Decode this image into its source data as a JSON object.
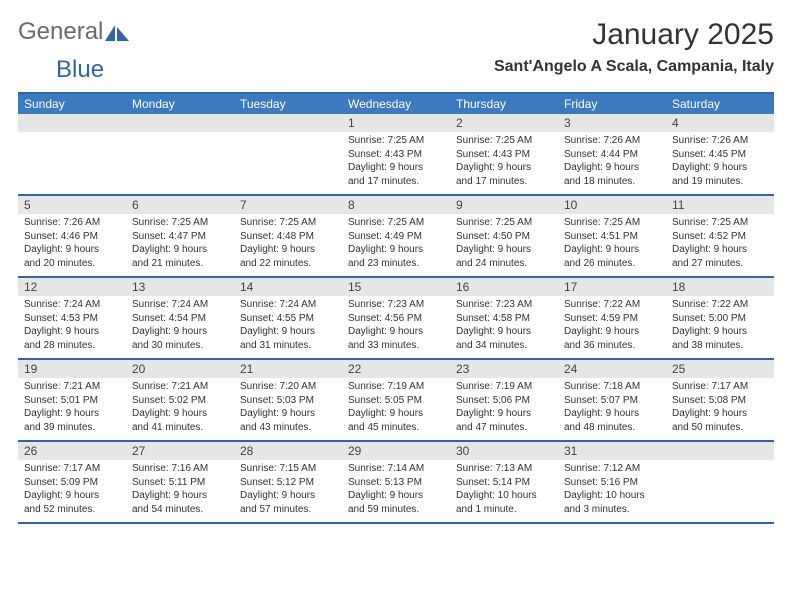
{
  "brand": {
    "word1": "General",
    "word2": "Blue"
  },
  "title": "January 2025",
  "location": "Sant'Angelo A Scala, Campania, Italy",
  "colors": {
    "header_bg": "#3b7abf",
    "rule": "#2f67a6",
    "daynum_bg": "#e6e6e6",
    "text": "#333333",
    "page_bg": "#ffffff"
  },
  "day_names": [
    "Sunday",
    "Monday",
    "Tuesday",
    "Wednesday",
    "Thursday",
    "Friday",
    "Saturday"
  ],
  "weeks": [
    [
      {
        "n": "",
        "sr": "",
        "ss": "",
        "dl1": "",
        "dl2": ""
      },
      {
        "n": "",
        "sr": "",
        "ss": "",
        "dl1": "",
        "dl2": ""
      },
      {
        "n": "",
        "sr": "",
        "ss": "",
        "dl1": "",
        "dl2": ""
      },
      {
        "n": "1",
        "sr": "Sunrise: 7:25 AM",
        "ss": "Sunset: 4:43 PM",
        "dl1": "Daylight: 9 hours",
        "dl2": "and 17 minutes."
      },
      {
        "n": "2",
        "sr": "Sunrise: 7:25 AM",
        "ss": "Sunset: 4:43 PM",
        "dl1": "Daylight: 9 hours",
        "dl2": "and 17 minutes."
      },
      {
        "n": "3",
        "sr": "Sunrise: 7:26 AM",
        "ss": "Sunset: 4:44 PM",
        "dl1": "Daylight: 9 hours",
        "dl2": "and 18 minutes."
      },
      {
        "n": "4",
        "sr": "Sunrise: 7:26 AM",
        "ss": "Sunset: 4:45 PM",
        "dl1": "Daylight: 9 hours",
        "dl2": "and 19 minutes."
      }
    ],
    [
      {
        "n": "5",
        "sr": "Sunrise: 7:26 AM",
        "ss": "Sunset: 4:46 PM",
        "dl1": "Daylight: 9 hours",
        "dl2": "and 20 minutes."
      },
      {
        "n": "6",
        "sr": "Sunrise: 7:25 AM",
        "ss": "Sunset: 4:47 PM",
        "dl1": "Daylight: 9 hours",
        "dl2": "and 21 minutes."
      },
      {
        "n": "7",
        "sr": "Sunrise: 7:25 AM",
        "ss": "Sunset: 4:48 PM",
        "dl1": "Daylight: 9 hours",
        "dl2": "and 22 minutes."
      },
      {
        "n": "8",
        "sr": "Sunrise: 7:25 AM",
        "ss": "Sunset: 4:49 PM",
        "dl1": "Daylight: 9 hours",
        "dl2": "and 23 minutes."
      },
      {
        "n": "9",
        "sr": "Sunrise: 7:25 AM",
        "ss": "Sunset: 4:50 PM",
        "dl1": "Daylight: 9 hours",
        "dl2": "and 24 minutes."
      },
      {
        "n": "10",
        "sr": "Sunrise: 7:25 AM",
        "ss": "Sunset: 4:51 PM",
        "dl1": "Daylight: 9 hours",
        "dl2": "and 26 minutes."
      },
      {
        "n": "11",
        "sr": "Sunrise: 7:25 AM",
        "ss": "Sunset: 4:52 PM",
        "dl1": "Daylight: 9 hours",
        "dl2": "and 27 minutes."
      }
    ],
    [
      {
        "n": "12",
        "sr": "Sunrise: 7:24 AM",
        "ss": "Sunset: 4:53 PM",
        "dl1": "Daylight: 9 hours",
        "dl2": "and 28 minutes."
      },
      {
        "n": "13",
        "sr": "Sunrise: 7:24 AM",
        "ss": "Sunset: 4:54 PM",
        "dl1": "Daylight: 9 hours",
        "dl2": "and 30 minutes."
      },
      {
        "n": "14",
        "sr": "Sunrise: 7:24 AM",
        "ss": "Sunset: 4:55 PM",
        "dl1": "Daylight: 9 hours",
        "dl2": "and 31 minutes."
      },
      {
        "n": "15",
        "sr": "Sunrise: 7:23 AM",
        "ss": "Sunset: 4:56 PM",
        "dl1": "Daylight: 9 hours",
        "dl2": "and 33 minutes."
      },
      {
        "n": "16",
        "sr": "Sunrise: 7:23 AM",
        "ss": "Sunset: 4:58 PM",
        "dl1": "Daylight: 9 hours",
        "dl2": "and 34 minutes."
      },
      {
        "n": "17",
        "sr": "Sunrise: 7:22 AM",
        "ss": "Sunset: 4:59 PM",
        "dl1": "Daylight: 9 hours",
        "dl2": "and 36 minutes."
      },
      {
        "n": "18",
        "sr": "Sunrise: 7:22 AM",
        "ss": "Sunset: 5:00 PM",
        "dl1": "Daylight: 9 hours",
        "dl2": "and 38 minutes."
      }
    ],
    [
      {
        "n": "19",
        "sr": "Sunrise: 7:21 AM",
        "ss": "Sunset: 5:01 PM",
        "dl1": "Daylight: 9 hours",
        "dl2": "and 39 minutes."
      },
      {
        "n": "20",
        "sr": "Sunrise: 7:21 AM",
        "ss": "Sunset: 5:02 PM",
        "dl1": "Daylight: 9 hours",
        "dl2": "and 41 minutes."
      },
      {
        "n": "21",
        "sr": "Sunrise: 7:20 AM",
        "ss": "Sunset: 5:03 PM",
        "dl1": "Daylight: 9 hours",
        "dl2": "and 43 minutes."
      },
      {
        "n": "22",
        "sr": "Sunrise: 7:19 AM",
        "ss": "Sunset: 5:05 PM",
        "dl1": "Daylight: 9 hours",
        "dl2": "and 45 minutes."
      },
      {
        "n": "23",
        "sr": "Sunrise: 7:19 AM",
        "ss": "Sunset: 5:06 PM",
        "dl1": "Daylight: 9 hours",
        "dl2": "and 47 minutes."
      },
      {
        "n": "24",
        "sr": "Sunrise: 7:18 AM",
        "ss": "Sunset: 5:07 PM",
        "dl1": "Daylight: 9 hours",
        "dl2": "and 48 minutes."
      },
      {
        "n": "25",
        "sr": "Sunrise: 7:17 AM",
        "ss": "Sunset: 5:08 PM",
        "dl1": "Daylight: 9 hours",
        "dl2": "and 50 minutes."
      }
    ],
    [
      {
        "n": "26",
        "sr": "Sunrise: 7:17 AM",
        "ss": "Sunset: 5:09 PM",
        "dl1": "Daylight: 9 hours",
        "dl2": "and 52 minutes."
      },
      {
        "n": "27",
        "sr": "Sunrise: 7:16 AM",
        "ss": "Sunset: 5:11 PM",
        "dl1": "Daylight: 9 hours",
        "dl2": "and 54 minutes."
      },
      {
        "n": "28",
        "sr": "Sunrise: 7:15 AM",
        "ss": "Sunset: 5:12 PM",
        "dl1": "Daylight: 9 hours",
        "dl2": "and 57 minutes."
      },
      {
        "n": "29",
        "sr": "Sunrise: 7:14 AM",
        "ss": "Sunset: 5:13 PM",
        "dl1": "Daylight: 9 hours",
        "dl2": "and 59 minutes."
      },
      {
        "n": "30",
        "sr": "Sunrise: 7:13 AM",
        "ss": "Sunset: 5:14 PM",
        "dl1": "Daylight: 10 hours",
        "dl2": "and 1 minute."
      },
      {
        "n": "31",
        "sr": "Sunrise: 7:12 AM",
        "ss": "Sunset: 5:16 PM",
        "dl1": "Daylight: 10 hours",
        "dl2": "and 3 minutes."
      },
      {
        "n": "",
        "sr": "",
        "ss": "",
        "dl1": "",
        "dl2": ""
      }
    ]
  ]
}
